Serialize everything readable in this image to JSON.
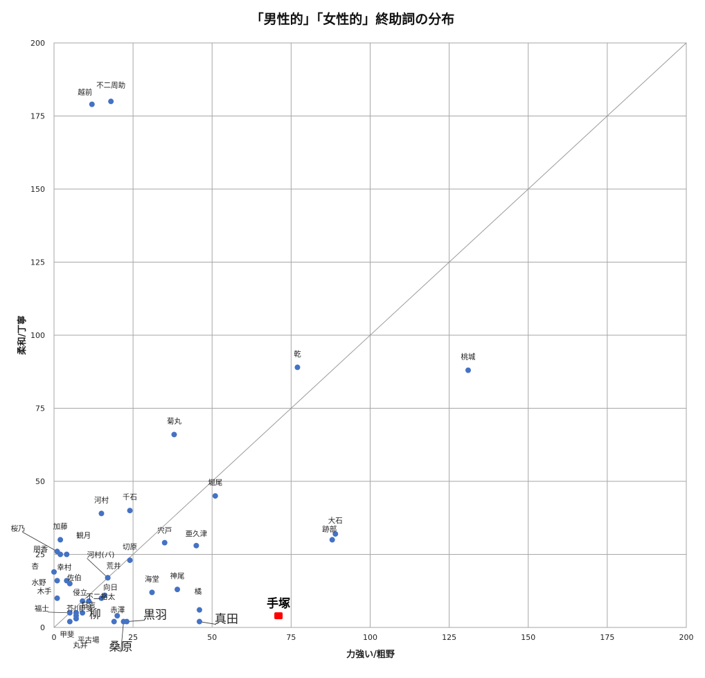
{
  "chart_data": {
    "type": "scatter",
    "title": "「男性的」「女性的」終助詞の分布",
    "xlabel": "力強い/粗野",
    "ylabel": "柔和/丁寧",
    "xlim": [
      0,
      200
    ],
    "ylim": [
      0,
      200
    ],
    "xticks": [
      0,
      25,
      50,
      75,
      100,
      125,
      150,
      175,
      200
    ],
    "yticks": [
      0,
      25,
      50,
      75,
      100,
      125,
      150,
      175,
      200
    ],
    "grid": true,
    "reference_line": "y = x",
    "marker_color": "#4472c4",
    "highlight_color": "#ff0000",
    "points": [
      {
        "label": "越前",
        "x": 12,
        "y": 179
      },
      {
        "label": "不二周助",
        "x": 18,
        "y": 180
      },
      {
        "label": "乾",
        "x": 77,
        "y": 89
      },
      {
        "label": "桃城",
        "x": 131,
        "y": 88
      },
      {
        "label": "菊丸",
        "x": 38,
        "y": 66
      },
      {
        "label": "堀尾",
        "x": 51,
        "y": 45
      },
      {
        "label": "千石",
        "x": 24,
        "y": 40
      },
      {
        "label": "河村",
        "x": 15,
        "y": 39
      },
      {
        "label": "大石",
        "x": 89,
        "y": 32
      },
      {
        "label": "跡部",
        "x": 88,
        "y": 30
      },
      {
        "label": "宍戸",
        "x": 35,
        "y": 29
      },
      {
        "label": "亜久津",
        "x": 45,
        "y": 28
      },
      {
        "label": "加藤",
        "x": 2,
        "y": 30
      },
      {
        "label": "観月",
        "x": 4,
        "y": 25
      },
      {
        "label": "桜乃",
        "x": 1,
        "y": 26
      },
      {
        "label": "朋香",
        "x": 2,
        "y": 25
      },
      {
        "label": "切原",
        "x": 24,
        "y": 23
      },
      {
        "label": "河村(バ)",
        "x": 17,
        "y": 17
      },
      {
        "label": "荒井",
        "x": 17,
        "y": 17
      },
      {
        "label": "杏",
        "x": 0,
        "y": 19
      },
      {
        "label": "幸村",
        "x": 4,
        "y": 16
      },
      {
        "label": "佐伯",
        "x": 5,
        "y": 15
      },
      {
        "label": "水野",
        "x": 1,
        "y": 16
      },
      {
        "label": "海堂",
        "x": 31,
        "y": 12
      },
      {
        "label": "神尾",
        "x": 39,
        "y": 13
      },
      {
        "label": "向日",
        "x": 16,
        "y": 11
      },
      {
        "label": "木手",
        "x": 1,
        "y": 10
      },
      {
        "label": "侵立",
        "x": 9,
        "y": 9
      },
      {
        "label": "不二裕太",
        "x": 11,
        "y": 9
      },
      {
        "label": "甲斐",
        "x": 15,
        "y": 10
      },
      {
        "label": "橘",
        "x": 46,
        "y": 6
      },
      {
        "label": "芥川",
        "x": 7,
        "y": 5
      },
      {
        "label": "日吉",
        "x": 9,
        "y": 5
      },
      {
        "label": "福士",
        "x": 5,
        "y": 5
      },
      {
        "label": "赤澤",
        "x": 20,
        "y": 4
      },
      {
        "label": "柳",
        "x": 19,
        "y": 2
      },
      {
        "label": "黒羽",
        "x": 23,
        "y": 2
      },
      {
        "label": "真田",
        "x": 46,
        "y": 2
      },
      {
        "label": "桑原",
        "x": 22,
        "y": 2
      },
      {
        "label": "甲斐",
        "x": 5,
        "y": 2
      },
      {
        "label": "平古場",
        "x": 7,
        "y": 3
      },
      {
        "label": "丸井",
        "x": 7,
        "y": 4
      },
      {
        "label": "手塚",
        "x": 71,
        "y": 4,
        "highlight": true
      }
    ]
  }
}
